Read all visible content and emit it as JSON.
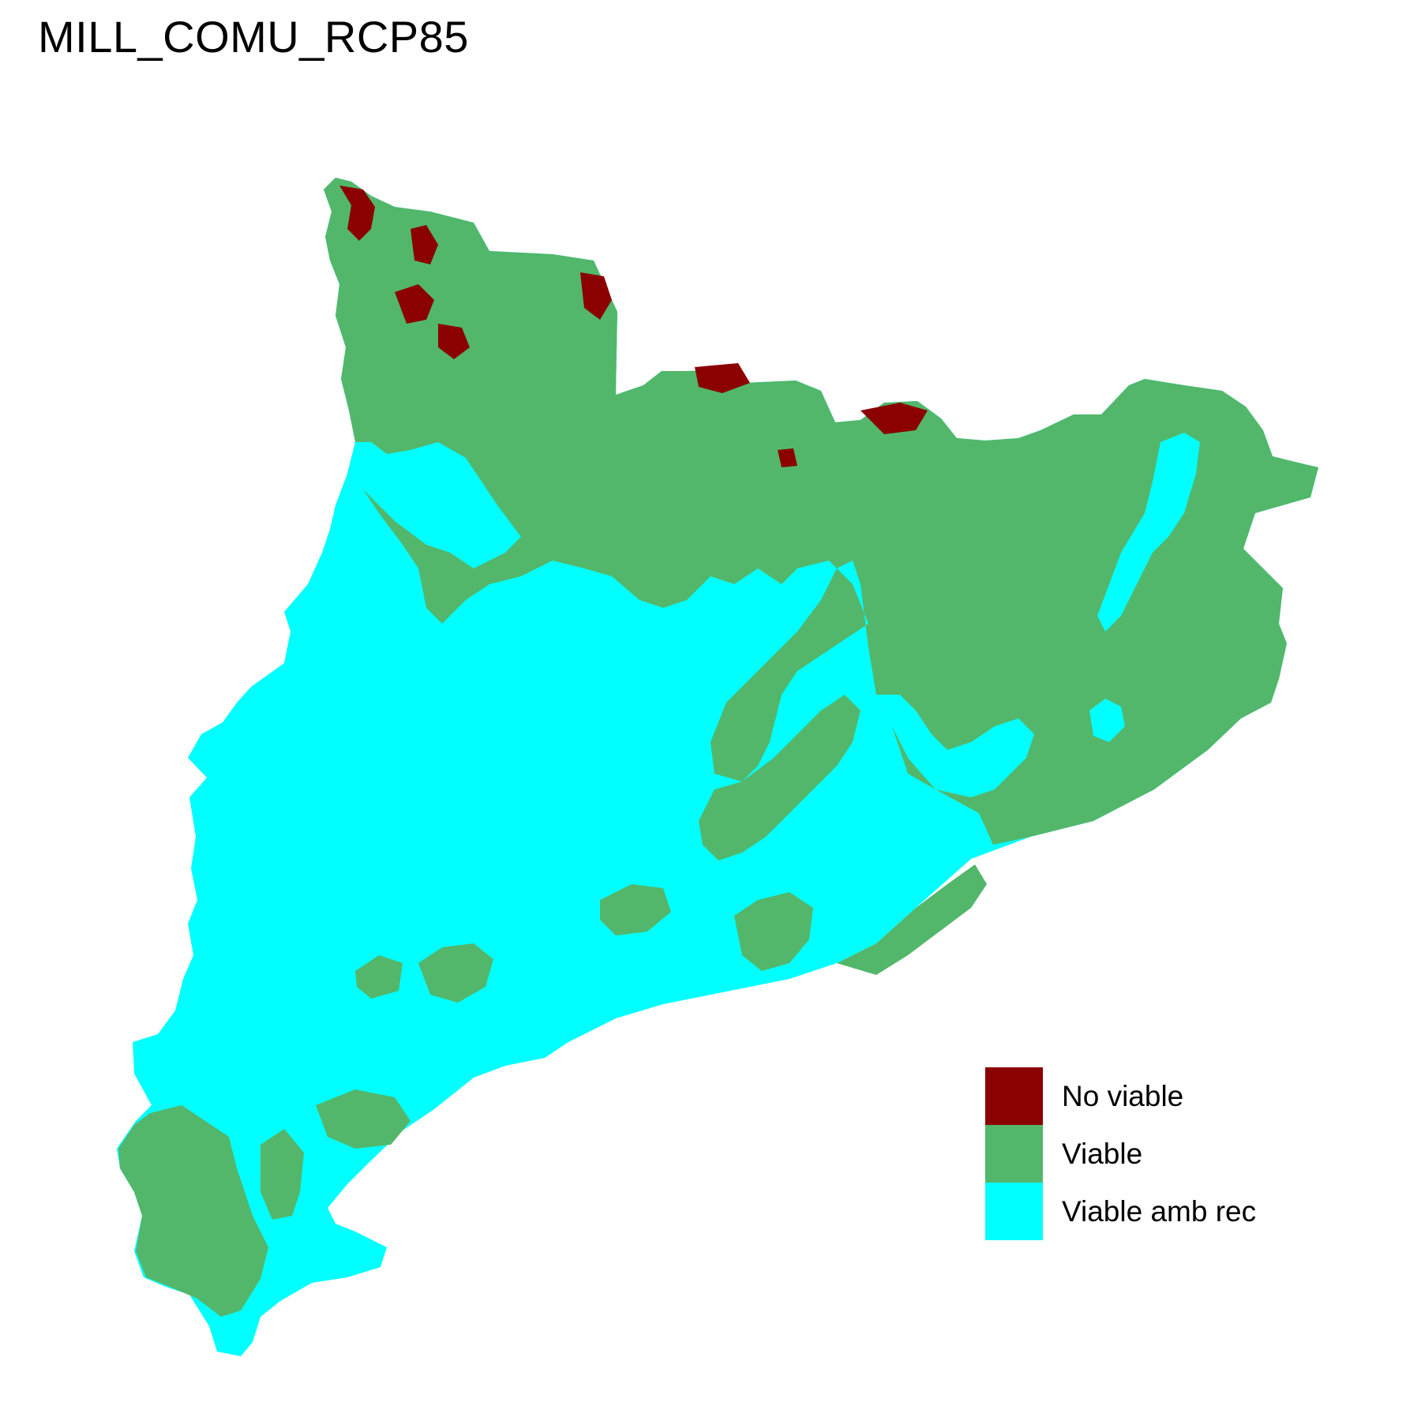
{
  "title": "MILL_COMU_RCP85",
  "colors": {
    "no_viable": "#8B0000",
    "viable": "#52B76A",
    "viable_amb_rec": "#00FFFF"
  },
  "legend": {
    "items": [
      {
        "label": "No viable",
        "color": "#8B0000"
      },
      {
        "label": "Viable",
        "color": "#52B76A"
      },
      {
        "label": "Viable amb rec",
        "color": "#00FFFF"
      }
    ]
  }
}
